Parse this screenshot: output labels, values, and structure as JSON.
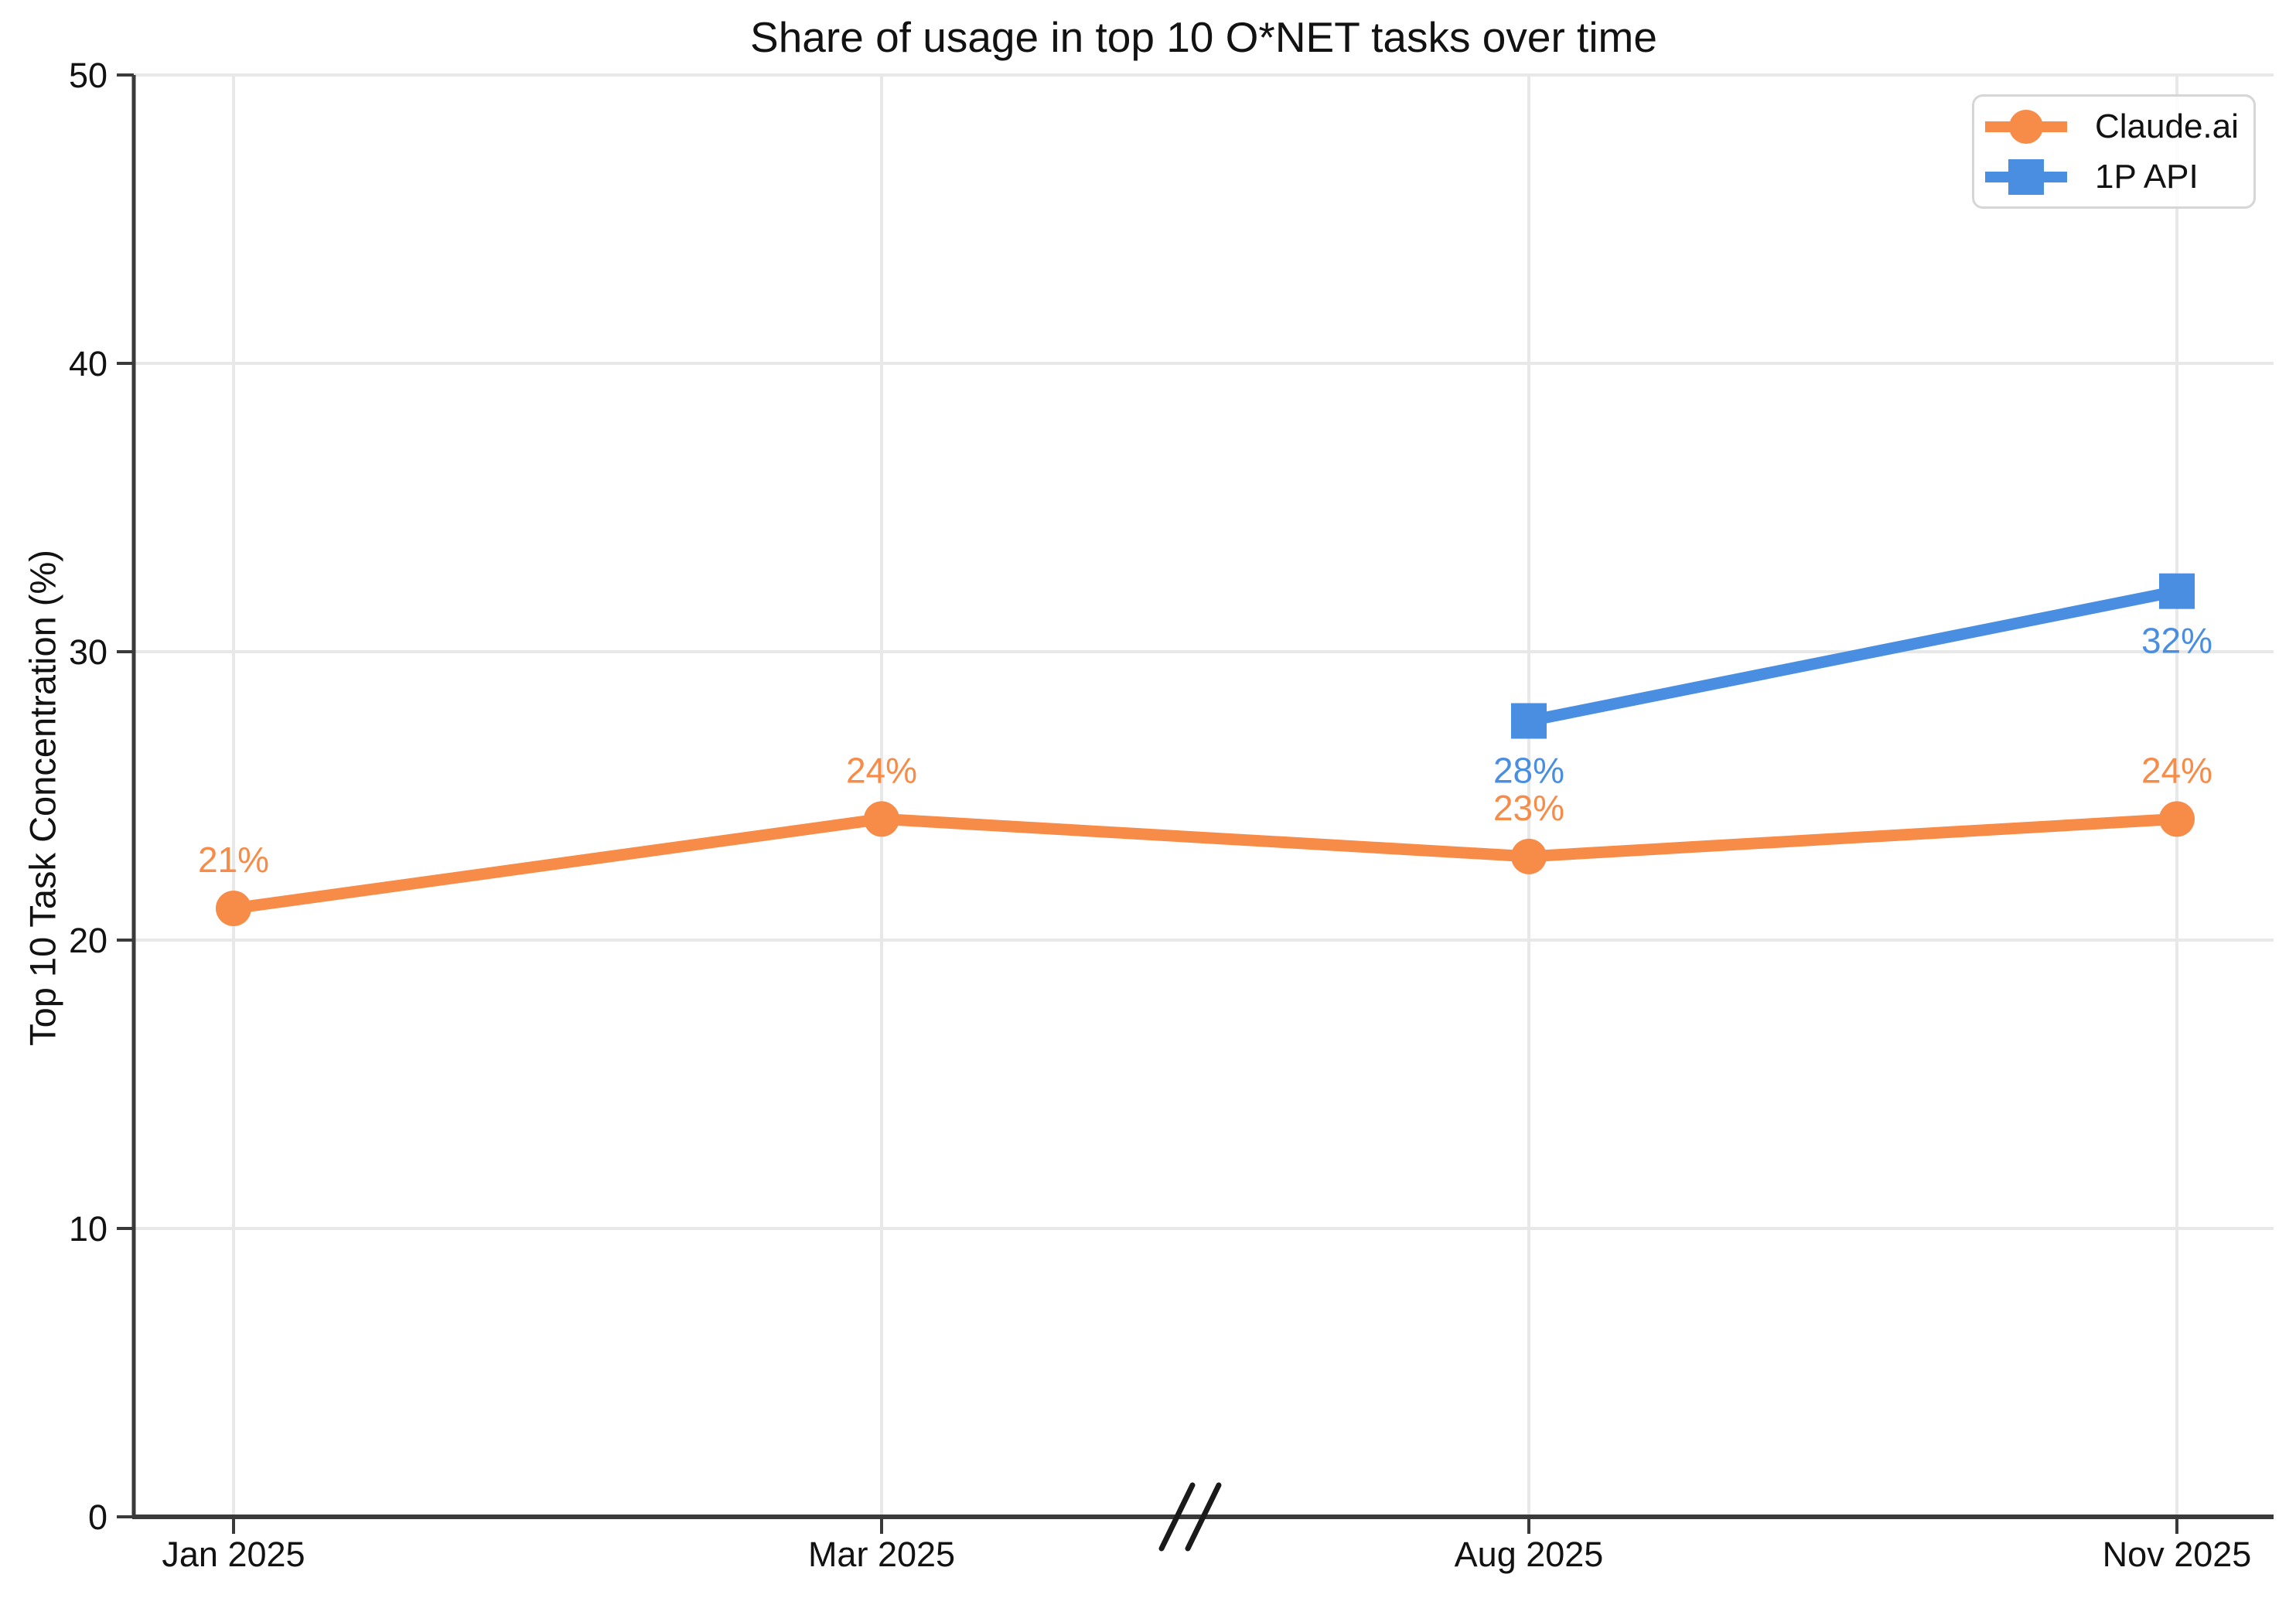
{
  "chart_data": {
    "type": "line",
    "title": "Share of usage in top 10 O*NET tasks over time",
    "xlabel": "",
    "ylabel": "Top 10 Task Concentration (%)",
    "x_categories": [
      "Jan 2025",
      "Mar 2025",
      "Aug 2025",
      "Nov 2025"
    ],
    "y_ticks": [
      0,
      10,
      20,
      30,
      40,
      50
    ],
    "y_tick_labels": [
      "0",
      "10",
      "20",
      "30",
      "40",
      "50"
    ],
    "ylim": [
      0,
      50
    ],
    "grid": true,
    "axis_break": "between Mar 2025 and Aug 2025",
    "legend_position": "top-right",
    "series": [
      {
        "name": "Claude.ai",
        "color": "#F78B48",
        "marker": "circle",
        "x": [
          "Jan 2025",
          "Mar 2025",
          "Aug 2025",
          "Nov 2025"
        ],
        "values": [
          21.1,
          24.2,
          22.9,
          24.2
        ],
        "point_labels": [
          "21%",
          "24%",
          "23%",
          "24%"
        ],
        "label_position": "above"
      },
      {
        "name": "1P API",
        "color": "#4A8EE2",
        "marker": "square",
        "x": [
          "Aug 2025",
          "Nov 2025"
        ],
        "values": [
          27.6,
          32.1
        ],
        "point_labels": [
          "28%",
          "32%"
        ],
        "label_position": "below"
      }
    ]
  },
  "colors": {
    "background": "#FFFFFF",
    "grid": "#E8E8E8",
    "axis": "#3A3A3A",
    "text": "#121212",
    "break_mark": "#1A1A1A",
    "claude_orange": "#F78B48",
    "api_blue": "#4A8EE2"
  }
}
